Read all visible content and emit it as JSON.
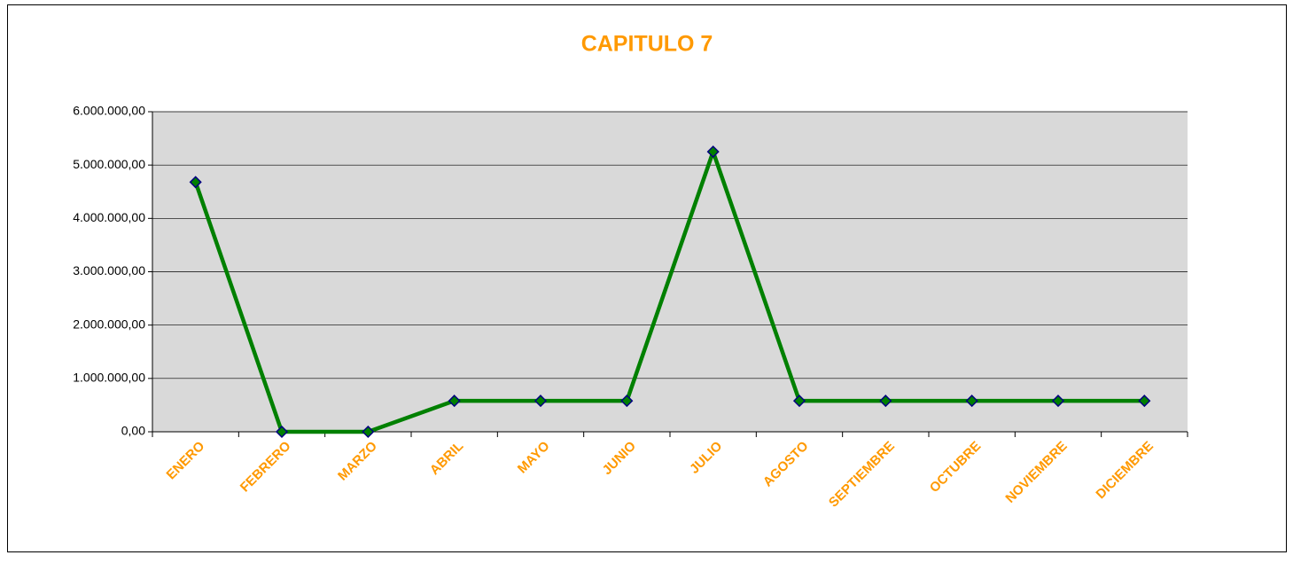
{
  "chart_data": {
    "type": "line",
    "title": "CAPITULO 7",
    "categories": [
      "ENERO",
      "FEBRERO",
      "MARZO",
      "ABRIL",
      "MAYO",
      "JUNIO",
      "JULIO",
      "AGOSTO",
      "SEPTIEMBRE",
      "OCTUBRE",
      "NOVIEMBRE",
      "DICIEMBRE"
    ],
    "values": [
      4680000,
      0,
      0,
      580000,
      580000,
      580000,
      5250000,
      580000,
      580000,
      580000,
      580000,
      580000
    ],
    "color": "#008000",
    "marker_color": "#008000",
    "marker_edge": "#000080",
    "ylim": [
      0,
      6000000
    ],
    "yticks": [
      {
        "value": 0,
        "label": "0,00"
      },
      {
        "value": 1000000,
        "label": "1.000.000,00"
      },
      {
        "value": 2000000,
        "label": "2.000.000,00"
      },
      {
        "value": 3000000,
        "label": "3.000.000,00"
      },
      {
        "value": 4000000,
        "label": "4.000.000,00"
      },
      {
        "value": 5000000,
        "label": "5.000.000,00"
      },
      {
        "value": 6000000,
        "label": "6.000.000,00"
      }
    ],
    "grid": true
  }
}
